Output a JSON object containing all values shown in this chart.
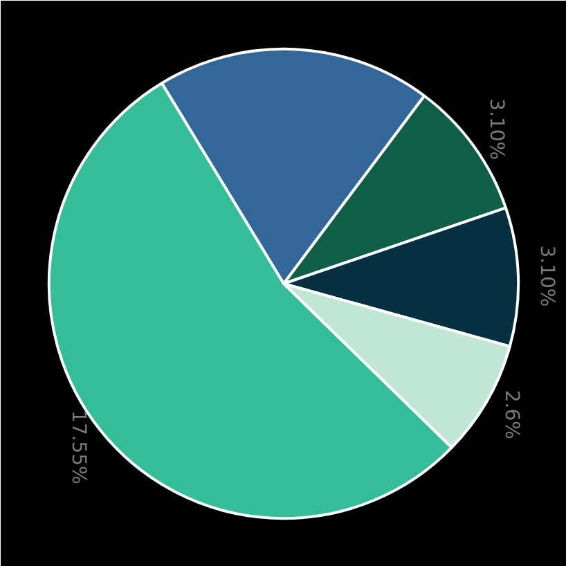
{
  "chart_data": {
    "type": "pie",
    "categories": [
      null,
      null,
      null,
      null,
      null
    ],
    "values": [
      6.15,
      3.1,
      3.1,
      2.6,
      17.55
    ],
    "value_labels": [
      null,
      "3.10%",
      "3.10%",
      "2.6%",
      "17.55%"
    ],
    "colors": [
      "#336699",
      "#0e5e48",
      "#06303f",
      "#c2e6d6",
      "#33bd98"
    ]
  }
}
